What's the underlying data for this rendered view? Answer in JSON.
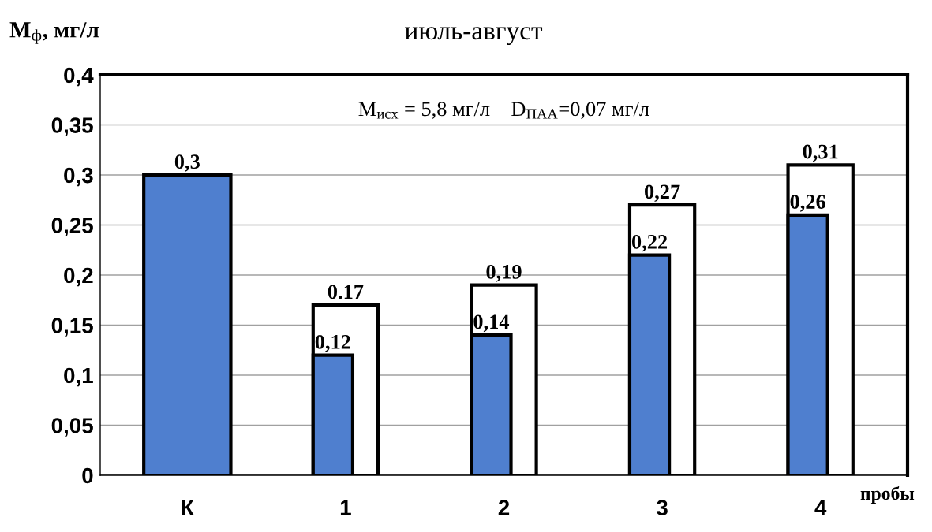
{
  "chart_data": {
    "type": "bar",
    "title": "июль-август",
    "ylabel": "M$_{ф}$, мг/л",
    "xlabel": "пробы",
    "categories": [
      "К",
      "1",
      "2",
      "3",
      "4"
    ],
    "series": [
      {
        "color": "#4f7fcf",
        "values": [
          0.3,
          0.12,
          0.14,
          0.22,
          0.26
        ],
        "value_labels": [
          "0,3",
          "0,12",
          "0,14",
          "0,22",
          "0,26"
        ]
      },
      {
        "color": "#ffffff",
        "values": [
          null,
          0.17,
          0.19,
          0.27,
          0.31
        ],
        "value_labels": [
          null,
          "0.17",
          "0,19",
          "0,27",
          "0,31"
        ]
      }
    ],
    "ylim": [
      0,
      0.4
    ],
    "yticks": [
      0,
      {
        "value": 0.05,
        "label": "0,05"
      },
      {
        "value": 0.1,
        "label": "0,1"
      },
      {
        "value": 0.15,
        "label": "0,15"
      },
      {
        "value": 0.2,
        "label": "0,2"
      },
      {
        "value": 0.25,
        "label": "0,25"
      },
      {
        "value": 0.3,
        "label": "0,3"
      },
      {
        "value": 0.35,
        "label": "0,35"
      },
      {
        "value": 0.4,
        "label": "0,4"
      }
    ],
    "grid": "y",
    "legend": false,
    "annotations": [
      "M$_{исх}$ = 5,8 мг/л    D$_{ПАА}$=0,07 мг/л"
    ]
  }
}
